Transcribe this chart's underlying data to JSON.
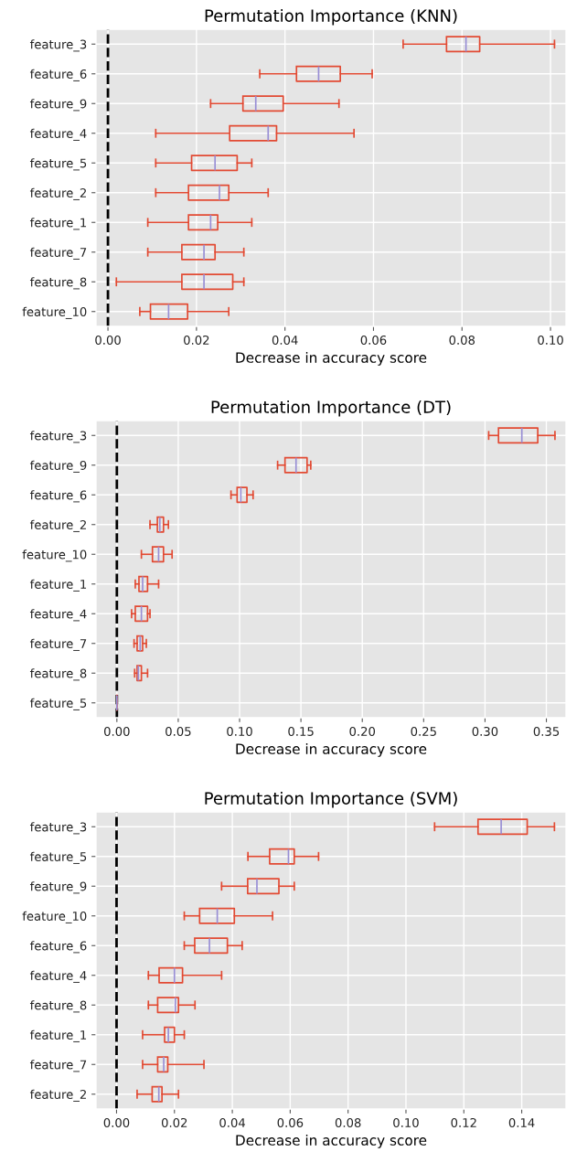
{
  "chart_data": [
    {
      "type": "box",
      "orientation": "horizontal",
      "title": "Permutation Importance (KNN)",
      "xlabel": "Decrease in accuracy score",
      "color": "#e24a33",
      "grid": true,
      "categories": [
        "feature_3",
        "feature_6",
        "feature_9",
        "feature_4",
        "feature_5",
        "feature_2",
        "feature_1",
        "feature_7",
        "feature_8",
        "feature_10"
      ],
      "boxes": [
        {
          "low": 0.0667,
          "q1": 0.0765,
          "median": 0.0809,
          "q3": 0.084,
          "high": 0.1009
        },
        {
          "low": 0.0343,
          "q1": 0.0426,
          "median": 0.0476,
          "q3": 0.0525,
          "high": 0.0597
        },
        {
          "low": 0.0232,
          "q1": 0.0305,
          "median": 0.0334,
          "q3": 0.0396,
          "high": 0.0522
        },
        {
          "low": 0.0108,
          "q1": 0.0275,
          "median": 0.0362,
          "q3": 0.0381,
          "high": 0.0556
        },
        {
          "low": 0.0108,
          "q1": 0.0189,
          "median": 0.0242,
          "q3": 0.0292,
          "high": 0.0325
        },
        {
          "low": 0.0108,
          "q1": 0.0182,
          "median": 0.0252,
          "q3": 0.0273,
          "high": 0.0362
        },
        {
          "low": 0.009,
          "q1": 0.0182,
          "median": 0.0232,
          "q3": 0.0248,
          "high": 0.0325
        },
        {
          "low": 0.009,
          "q1": 0.0167,
          "median": 0.0217,
          "q3": 0.0242,
          "high": 0.0307
        },
        {
          "low": 0.0019,
          "q1": 0.0167,
          "median": 0.0217,
          "q3": 0.0282,
          "high": 0.0307
        },
        {
          "low": 0.0072,
          "q1": 0.0096,
          "median": 0.0137,
          "q3": 0.018,
          "high": 0.0273
        }
      ],
      "xlim": [
        -0.0027,
        0.1035
      ],
      "xticks": [
        {
          "value": 0,
          "label": "0.00"
        },
        {
          "value": 0.02,
          "label": "0.02"
        },
        {
          "value": 0.04,
          "label": "0.04"
        },
        {
          "value": 0.06,
          "label": "0.06"
        },
        {
          "value": 0.08,
          "label": "0.08"
        },
        {
          "value": 0.1,
          "label": "0.10"
        }
      ],
      "ref_lines": [
        {
          "axis": "x",
          "value": 0,
          "color": "#000000",
          "line_style": "dashed"
        }
      ]
    },
    {
      "type": "box",
      "orientation": "horizontal",
      "title": "Permutation Importance (DT)",
      "xlabel": "Decrease in accuracy score",
      "color": "#e24a33",
      "grid": true,
      "categories": [
        "feature_3",
        "feature_9",
        "feature_6",
        "feature_2",
        "feature_10",
        "feature_1",
        "feature_4",
        "feature_7",
        "feature_8",
        "feature_5"
      ],
      "boxes": [
        {
          "low": 0.303,
          "q1": 0.311,
          "median": 0.33,
          "q3": 0.343,
          "high": 0.357
        },
        {
          "low": 0.131,
          "q1": 0.137,
          "median": 0.146,
          "q3": 0.155,
          "high": 0.158
        },
        {
          "low": 0.093,
          "q1": 0.098,
          "median": 0.101,
          "q3": 0.106,
          "high": 0.111
        },
        {
          "low": 0.027,
          "q1": 0.033,
          "median": 0.035,
          "q3": 0.038,
          "high": 0.042
        },
        {
          "low": 0.02,
          "q1": 0.029,
          "median": 0.034,
          "q3": 0.038,
          "high": 0.045
        },
        {
          "low": 0.015,
          "q1": 0.018,
          "median": 0.021,
          "q3": 0.025,
          "high": 0.034
        },
        {
          "low": 0.012,
          "q1": 0.015,
          "median": 0.02,
          "q3": 0.025,
          "high": 0.027
        },
        {
          "low": 0.014,
          "q1": 0.0165,
          "median": 0.019,
          "q3": 0.021,
          "high": 0.024
        },
        {
          "low": 0.0145,
          "q1": 0.0165,
          "median": 0.0175,
          "q3": 0.02,
          "high": 0.025
        },
        {
          "low": 0,
          "q1": 0,
          "median": 0,
          "q3": 0,
          "high": 0
        }
      ],
      "xlim": [
        -0.017,
        0.366
      ],
      "xticks": [
        {
          "value": 0,
          "label": "0.00"
        },
        {
          "value": 0.05,
          "label": "0.05"
        },
        {
          "value": 0.1,
          "label": "0.10"
        },
        {
          "value": 0.15,
          "label": "0.15"
        },
        {
          "value": 0.2,
          "label": "0.20"
        },
        {
          "value": 0.25,
          "label": "0.25"
        },
        {
          "value": 0.3,
          "label": "0.30"
        },
        {
          "value": 0.35,
          "label": "0.35"
        }
      ],
      "ref_lines": [
        {
          "axis": "x",
          "value": 0,
          "color": "#000000",
          "line_style": "dashed"
        }
      ]
    },
    {
      "type": "box",
      "orientation": "horizontal",
      "title": "Permutation Importance (SVM)",
      "xlabel": "Decrease in accuracy score",
      "color": "#e24a33",
      "grid": true,
      "categories": [
        "feature_3",
        "feature_5",
        "feature_9",
        "feature_10",
        "feature_6",
        "feature_4",
        "feature_8",
        "feature_1",
        "feature_7",
        "feature_2"
      ],
      "boxes": [
        {
          "low": 0.1099,
          "q1": 0.1249,
          "median": 0.1329,
          "q3": 0.1419,
          "high": 0.1513
        },
        {
          "low": 0.0454,
          "q1": 0.0529,
          "median": 0.0594,
          "q3": 0.0614,
          "high": 0.0698
        },
        {
          "low": 0.0363,
          "q1": 0.0453,
          "median": 0.0485,
          "q3": 0.0561,
          "high": 0.0614
        },
        {
          "low": 0.0234,
          "q1": 0.0287,
          "median": 0.0348,
          "q3": 0.0407,
          "high": 0.0539
        },
        {
          "low": 0.0234,
          "q1": 0.027,
          "median": 0.0321,
          "q3": 0.0383,
          "high": 0.0434
        },
        {
          "low": 0.011,
          "q1": 0.0147,
          "median": 0.02,
          "q3": 0.0228,
          "high": 0.0363
        },
        {
          "low": 0.011,
          "q1": 0.0142,
          "median": 0.0203,
          "q3": 0.0214,
          "high": 0.0271
        },
        {
          "low": 0.009,
          "q1": 0.0166,
          "median": 0.0179,
          "q3": 0.02,
          "high": 0.0234
        },
        {
          "low": 0.009,
          "q1": 0.0142,
          "median": 0.0163,
          "q3": 0.0177,
          "high": 0.0302
        },
        {
          "low": 0.0071,
          "q1": 0.0123,
          "median": 0.0146,
          "q3": 0.0157,
          "high": 0.0214
        }
      ],
      "xlim": [
        -0.0071,
        0.1553
      ],
      "xticks": [
        {
          "value": 0,
          "label": "0.00"
        },
        {
          "value": 0.02,
          "label": "0.02"
        },
        {
          "value": 0.04,
          "label": "0.04"
        },
        {
          "value": 0.06,
          "label": "0.06"
        },
        {
          "value": 0.08,
          "label": "0.08"
        },
        {
          "value": 0.1,
          "label": "0.10"
        },
        {
          "value": 0.12,
          "label": "0.12"
        },
        {
          "value": 0.14,
          "label": "0.14"
        }
      ],
      "ref_lines": [
        {
          "axis": "x",
          "value": 0,
          "color": "#000000",
          "line_style": "dashed"
        }
      ]
    }
  ]
}
